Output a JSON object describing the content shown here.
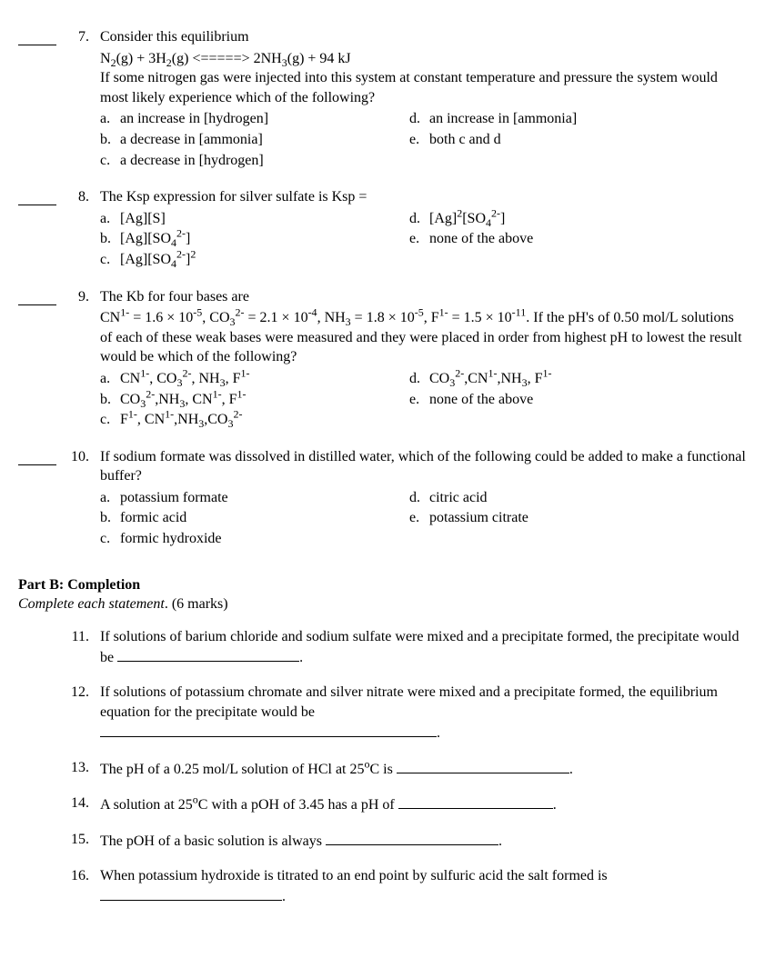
{
  "partA": {
    "questions": [
      {
        "num": "7.",
        "stem": "Consider this equilibrium",
        "extra_html": "N<sub>2</sub>(g) + 3H<sub>2</sub>(g) &lt;=====&gt; 2NH<sub>3</sub>(g) + 94 kJ",
        "post": "If some nitrogen gas were injected into this system at constant temperature and pressure the system would most likely experience which of the following?",
        "left": [
          {
            "l": "a.",
            "t": "an increase in [hydrogen]"
          },
          {
            "l": "b.",
            "t": "a decrease in [ammonia]"
          },
          {
            "l": "c.",
            "t": "a decrease in [hydrogen]"
          }
        ],
        "right": [
          {
            "l": "d.",
            "t": "an increase in [ammonia]"
          },
          {
            "l": "e.",
            "t": "both c and d"
          }
        ]
      },
      {
        "num": "8.",
        "stem": "The Ksp expression for silver sulfate is Ksp =",
        "left_html": [
          {
            "l": "a.",
            "t": "[Ag][S]"
          },
          {
            "l": "b.",
            "t": "[Ag][SO<sub>4</sub><sup>2-</sup>]"
          },
          {
            "l": "c.",
            "t": "[Ag][SO<sub>4</sub><sup>2-</sup>]<sup>2</sup>"
          }
        ],
        "right_html": [
          {
            "l": "d.",
            "t": "[Ag]<sup>2</sup>[SO<sub>4</sub><sup>2-</sup>]"
          },
          {
            "l": "e.",
            "t": "none of the above"
          }
        ]
      },
      {
        "num": "9.",
        "stem": "The Kb for four bases are",
        "extra_html": "CN<sup>1-</sup> = 1.6 × 10<sup>-5</sup>, CO<sub>3</sub><sup>2-</sup> = 2.1 × 10<sup>-4</sup>, NH<sub>3</sub> = 1.8 × 10<sup>-5</sup>, F<sup>1-</sup> = 1.5 × 10<sup>-11</sup>. If the pH's of 0.50 mol/L solutions of each of these weak bases were measured and they were placed in order from highest pH to lowest the result would be which of the following?",
        "left_html": [
          {
            "l": "a.",
            "t": "CN<sup>1-</sup>, CO<sub>3</sub><sup>2-</sup>, NH<sub>3</sub>, F<sup>1-</sup>"
          },
          {
            "l": "b.",
            "t": "CO<sub>3</sub><sup>2-</sup>,NH<sub>3</sub>, CN<sup>1-</sup>, F<sup>1-</sup>"
          },
          {
            "l": "c.",
            "t": "F<sup>1-</sup>, CN<sup>1-</sup>,NH<sub>3</sub>,CO<sub>3</sub><sup>2-</sup>"
          }
        ],
        "right_html": [
          {
            "l": "d.",
            "t": "CO<sub>3</sub><sup>2-</sup>,CN<sup>1-</sup>,NH<sub>3</sub>, F<sup>1-</sup>"
          },
          {
            "l": "e.",
            "t": "none of the above"
          }
        ]
      },
      {
        "num": "10.",
        "stem": "If sodium formate was dissolved in distilled water, which of the following could be added to make a functional buffer?",
        "left": [
          {
            "l": "a.",
            "t": "potassium formate"
          },
          {
            "l": "b.",
            "t": "formic acid"
          },
          {
            "l": "c.",
            "t": "formic hydroxide"
          }
        ],
        "right": [
          {
            "l": "d.",
            "t": "citric acid"
          },
          {
            "l": "e.",
            "t": "potassium citrate"
          }
        ]
      }
    ]
  },
  "partB": {
    "title": "Part B: Completion",
    "instr": "Complete each statement",
    "marks": ".  (6 marks)",
    "questions": [
      {
        "num": "11.",
        "html": "If solutions of barium chloride and sodium sulfate were mixed and a precipitate formed, the precipitate would be <span class=\"fillblank\"></span>."
      },
      {
        "num": "12.",
        "html": "If solutions of potassium chromate and silver nitrate were mixed and a precipitate formed, the equilibrium equation for the precipitate would be<br><span class=\"fillblank long\"></span>."
      },
      {
        "num": "13.",
        "html": "The pH of a 0.25 mol/L solution of HCl at 25<sup>o</sup>C is <span class=\"fillblank med\"></span>."
      },
      {
        "num": "14.",
        "html": "A solution at 25<sup>o</sup>C with a pOH of 3.45 has a pH of <span class=\"fillblank short\"></span>."
      },
      {
        "num": "15.",
        "html": "The pOH of a basic solution is always <span class=\"fillblank med\"></span>."
      },
      {
        "num": "16.",
        "html": "When potassium hydroxide is titrated to an end point by sulfuric acid the salt formed is<br><span class=\"fillblank\"></span>."
      }
    ]
  }
}
